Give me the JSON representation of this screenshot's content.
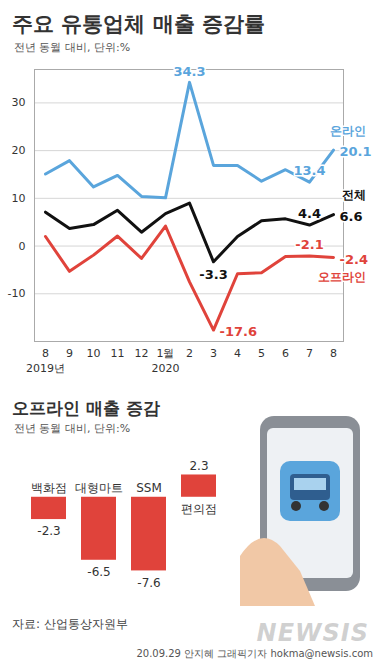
{
  "source": "자료: 산업통상자원부",
  "credit": "20.09.29 안지혜 그래픽기자 hokma@newsis.com",
  "watermark": "NEWSIS",
  "chart_data": [
    {
      "type": "line",
      "title": "주요 유통업체 매출 증감률",
      "subtitle": "전년 동월 대비, 단위:%",
      "categories": [
        "8",
        "9",
        "10",
        "11",
        "12",
        "1월",
        "2",
        "3",
        "4",
        "5",
        "6",
        "7",
        "8"
      ],
      "year_labels": [
        "2019년",
        null,
        null,
        null,
        null,
        "2020",
        null,
        null,
        null,
        null,
        null,
        null,
        null
      ],
      "series": [
        {
          "name": "온라인",
          "color": "#5aa5dc",
          "values": [
            15.1,
            17.9,
            12.4,
            14.8,
            10.4,
            10.1,
            34.3,
            16.9,
            16.9,
            13.6,
            16.0,
            13.4,
            20.1
          ],
          "value_labels": [
            null,
            null,
            null,
            null,
            null,
            null,
            "34.3",
            null,
            null,
            null,
            null,
            "13.4",
            "20.1"
          ]
        },
        {
          "name": "전체",
          "color": "#111111",
          "values": [
            7.1,
            3.7,
            4.5,
            7.5,
            2.9,
            6.8,
            9.0,
            -3.3,
            2.0,
            5.3,
            5.7,
            4.4,
            6.6
          ],
          "value_labels": [
            null,
            null,
            null,
            null,
            null,
            null,
            null,
            "-3.3",
            null,
            null,
            null,
            "4.4",
            "6.6"
          ]
        },
        {
          "name": "오프라인",
          "color": "#e0433b",
          "values": [
            2.0,
            -5.3,
            -1.9,
            2.1,
            -2.6,
            4.2,
            -7.5,
            -17.6,
            -5.8,
            -5.6,
            -2.2,
            -2.1,
            -2.4
          ],
          "value_labels": [
            null,
            null,
            null,
            null,
            null,
            null,
            null,
            "-17.6",
            null,
            null,
            null,
            "-2.1",
            "-2.4"
          ]
        }
      ],
      "ylim": [
        -20,
        37
      ],
      "yticks": [
        -10,
        0,
        10,
        20,
        30
      ],
      "grid": true,
      "legend": "right"
    },
    {
      "type": "bar",
      "title": "오프라인 매출 증감",
      "subtitle": "전년 동월 대비, 단위:%",
      "categories": [
        "백화점",
        "대형마트",
        "SSM",
        "편의점"
      ],
      "values": [
        -2.3,
        -6.5,
        -7.6,
        2.3
      ],
      "color": "#e0433b",
      "ylim": [
        -9,
        4
      ],
      "data_labels": true,
      "tick_labels": false
    }
  ]
}
